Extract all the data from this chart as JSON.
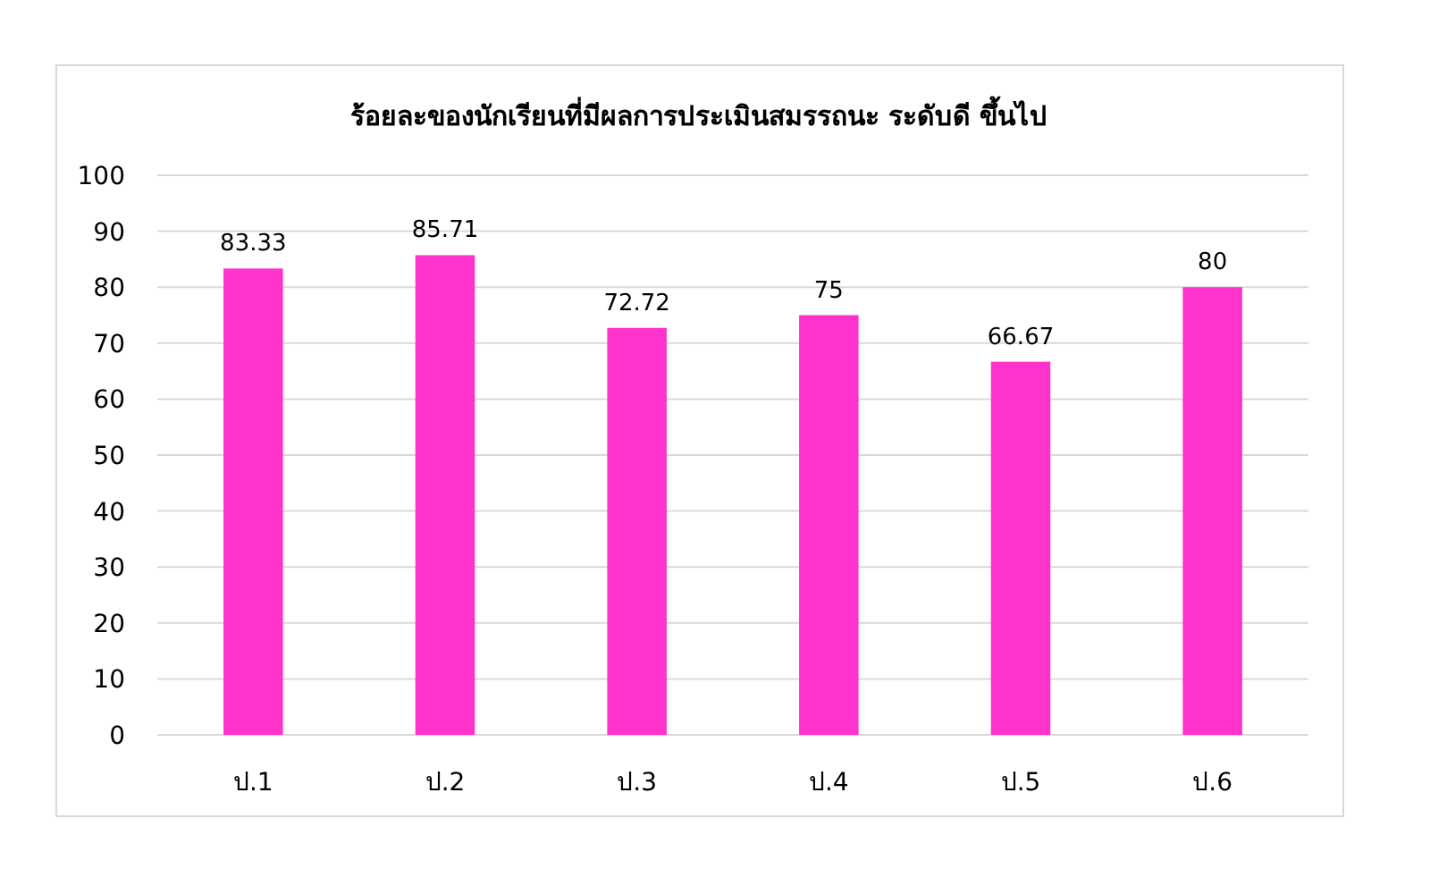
{
  "chart_data": {
    "type": "bar",
    "title": "ร้อยละของนักเรียนที่มีผลการประเมินสมรรถนะ ระดับดี ขึ้นไป",
    "categories": [
      "ป.1",
      "ป.2",
      "ป.3",
      "ป.4",
      "ป.5",
      "ป.6"
    ],
    "values": [
      83.33,
      85.71,
      72.72,
      75,
      66.67,
      80
    ],
    "color": "#ff33cc",
    "ylim": [
      0,
      100
    ],
    "yticks": [
      0,
      10,
      20,
      30,
      40,
      50,
      60,
      70,
      80,
      90,
      100
    ],
    "grid": "y",
    "data_labels": true
  }
}
